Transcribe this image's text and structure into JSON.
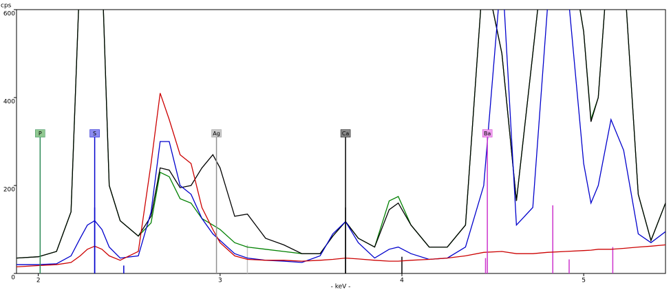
{
  "chart_data": {
    "type": "line",
    "y_label": "cps",
    "x_label": "- keV -",
    "xlim": [
      1.88,
      5.45
    ],
    "ylim": [
      0,
      600
    ],
    "xticks": [
      2,
      3,
      4,
      5
    ],
    "yticks": [
      0,
      200,
      400,
      600
    ],
    "x": [
      1.88,
      2.0,
      2.1,
      2.18,
      2.23,
      2.27,
      2.31,
      2.35,
      2.39,
      2.45,
      2.55,
      2.62,
      2.67,
      2.72,
      2.78,
      2.84,
      2.9,
      2.96,
      3.0,
      3.08,
      3.15,
      3.25,
      3.35,
      3.45,
      3.55,
      3.62,
      3.69,
      3.76,
      3.85,
      3.93,
      3.98,
      4.05,
      4.15,
      4.25,
      4.35,
      4.45,
      4.55,
      4.63,
      4.72,
      4.8,
      4.9,
      5.0,
      5.04,
      5.08,
      5.15,
      5.22,
      5.3,
      5.37,
      5.45
    ],
    "series": [
      {
        "color": "#008000",
        "values": [
          35,
          38,
          50,
          140,
          700,
          800,
          800,
          700,
          200,
          120,
          85,
          115,
          230,
          220,
          170,
          160,
          125,
          110,
          100,
          70,
          60,
          55,
          50,
          45,
          45,
          85,
          118,
          80,
          60,
          165,
          175,
          110,
          60,
          60,
          110,
          700,
          500,
          165,
          500,
          800,
          800,
          550,
          350,
          400,
          800,
          700,
          180,
          75,
          160
        ]
      },
      {
        "color": "#000000",
        "values": [
          35,
          38,
          50,
          140,
          700,
          800,
          800,
          700,
          200,
          120,
          85,
          130,
          240,
          235,
          195,
          200,
          240,
          270,
          240,
          130,
          135,
          80,
          65,
          45,
          45,
          85,
          118,
          80,
          60,
          145,
          160,
          110,
          60,
          60,
          110,
          700,
          500,
          165,
          500,
          800,
          800,
          550,
          345,
          400,
          800,
          700,
          180,
          75,
          160
        ]
      },
      {
        "color": "#0000cc",
        "values": [
          20,
          20,
          22,
          40,
          80,
          110,
          120,
          100,
          60,
          35,
          40,
          140,
          300,
          300,
          200,
          180,
          125,
          90,
          75,
          45,
          35,
          30,
          28,
          25,
          40,
          90,
          118,
          70,
          35,
          55,
          60,
          45,
          32,
          35,
          60,
          200,
          700,
          110,
          150,
          600,
          700,
          250,
          160,
          200,
          350,
          280,
          90,
          70,
          95
        ]
      },
      {
        "color": "#cc0000",
        "values": [
          15,
          18,
          20,
          25,
          40,
          55,
          62,
          55,
          40,
          30,
          50,
          250,
          410,
          350,
          270,
          250,
          150,
          100,
          70,
          40,
          32,
          30,
          30,
          28,
          30,
          32,
          35,
          33,
          30,
          28,
          28,
          30,
          32,
          35,
          40,
          48,
          50,
          45,
          45,
          48,
          50,
          52,
          53,
          55,
          55,
          57,
          60,
          62,
          65
        ]
      }
    ],
    "markers": [
      {
        "label": "P",
        "x": 2.01,
        "height": 310,
        "color": "#2e8b57",
        "fill": "#90c890"
      },
      {
        "label": "S",
        "x": 2.31,
        "height": 310,
        "color": "#0000cc",
        "fill": "#8c8cf0"
      },
      {
        "label": "Ag",
        "x": 2.98,
        "height": 310,
        "color": "#909090",
        "fill": "#c8c8c8"
      },
      {
        "label": "Ca",
        "x": 3.69,
        "height": 310,
        "color": "#000000",
        "fill": "#8a8a8a"
      },
      {
        "label": "Ba",
        "x": 4.47,
        "height": 310,
        "color": "#cc33cc",
        "fill": "#f0a0f0"
      }
    ],
    "lines": [
      {
        "x": 2.31,
        "height": 150,
        "color": "#0000cc"
      },
      {
        "x": 3.69,
        "height": 150,
        "color": "#000000"
      },
      {
        "x": 2.47,
        "height": 18,
        "color": "#0000cc"
      },
      {
        "x": 3.15,
        "height": 65,
        "color": "#c0c0c0"
      },
      {
        "x": 4.0,
        "height": 38,
        "color": "#000000"
      },
      {
        "x": 4.46,
        "height": 35,
        "color": "#cc33cc"
      },
      {
        "x": 4.83,
        "height": 155,
        "color": "#cc33cc"
      },
      {
        "x": 4.92,
        "height": 32,
        "color": "#cc33cc"
      },
      {
        "x": 5.16,
        "height": 60,
        "color": "#cc33cc"
      }
    ]
  }
}
